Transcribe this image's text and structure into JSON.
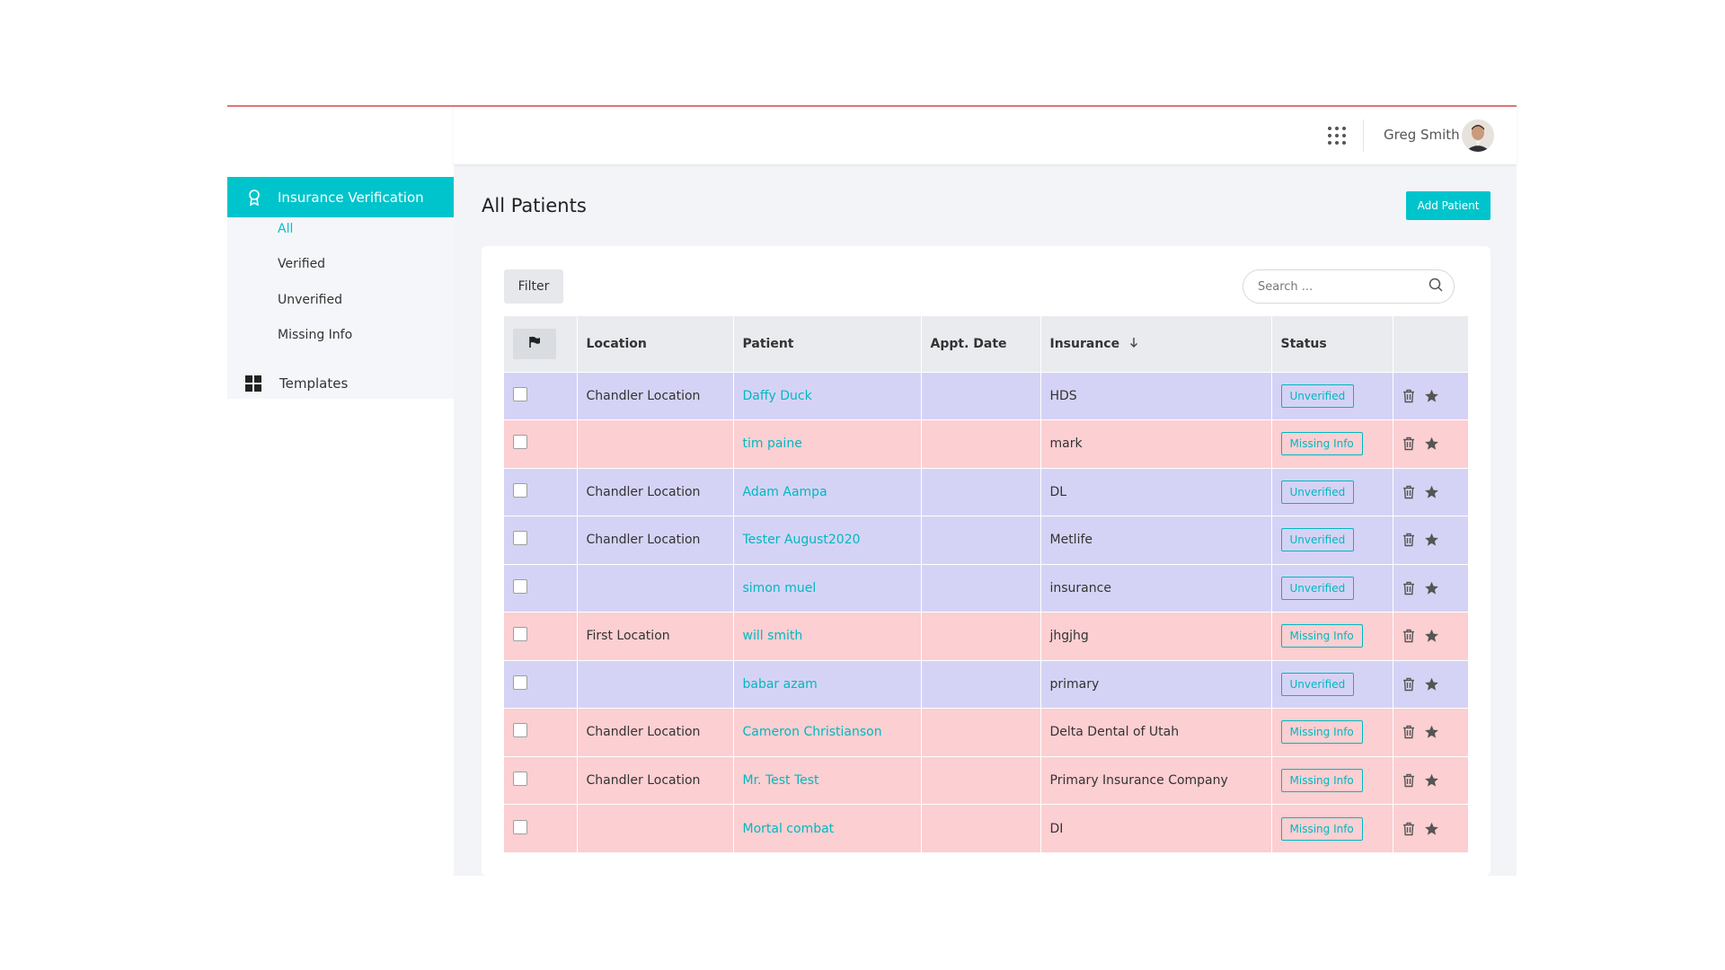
{
  "user": {
    "name": "Greg Smith"
  },
  "sidebar": {
    "active_item": "Insurance Verification",
    "sub_items": [
      "All",
      "Verified",
      "Unverified",
      "Missing Info"
    ],
    "templates_label": "Templates"
  },
  "page": {
    "title": "All Patients",
    "add_button": "Add Patient",
    "filter_button": "Filter",
    "search_placeholder": "Search ..."
  },
  "table": {
    "columns": [
      "Location",
      "Patient",
      "Appt. Date",
      "Insurance",
      "Status"
    ],
    "sort_column": "Insurance",
    "rows": [
      {
        "location": "Chandler Location",
        "patient": "Daffy Duck",
        "appt_date": "",
        "insurance": "HDS",
        "status": "Unverified"
      },
      {
        "location": "",
        "patient": "tim paine",
        "appt_date": "",
        "insurance": "mark",
        "status": "Missing Info"
      },
      {
        "location": "Chandler Location",
        "patient": "Adam Aampa",
        "appt_date": "",
        "insurance": "DL",
        "status": "Unverified"
      },
      {
        "location": "Chandler Location",
        "patient": "Tester August2020",
        "appt_date": "",
        "insurance": "Metlife",
        "status": "Unverified"
      },
      {
        "location": "",
        "patient": "simon muel",
        "appt_date": "",
        "insurance": "insurance",
        "status": "Unverified"
      },
      {
        "location": "First Location",
        "patient": "will smith",
        "appt_date": "",
        "insurance": "jhgjhg",
        "status": "Missing Info"
      },
      {
        "location": "",
        "patient": "babar azam",
        "appt_date": "",
        "insurance": "primary",
        "status": "Unverified"
      },
      {
        "location": "Chandler Location",
        "patient": "Cameron Christianson",
        "appt_date": "",
        "insurance": "Delta Dental of Utah",
        "status": "Missing Info"
      },
      {
        "location": "Chandler Location",
        "patient": "Mr. Test Test",
        "appt_date": "",
        "insurance": "Primary Insurance Company",
        "status": "Missing Info"
      },
      {
        "location": "",
        "patient": "Mortal combat",
        "appt_date": "",
        "insurance": "DI",
        "status": "Missing Info"
      }
    ]
  },
  "colors": {
    "accent": "#00c4cc",
    "unverified_row": "#d5d3f5",
    "missing_row": "#fccfd2",
    "top_border": "#e57373"
  }
}
